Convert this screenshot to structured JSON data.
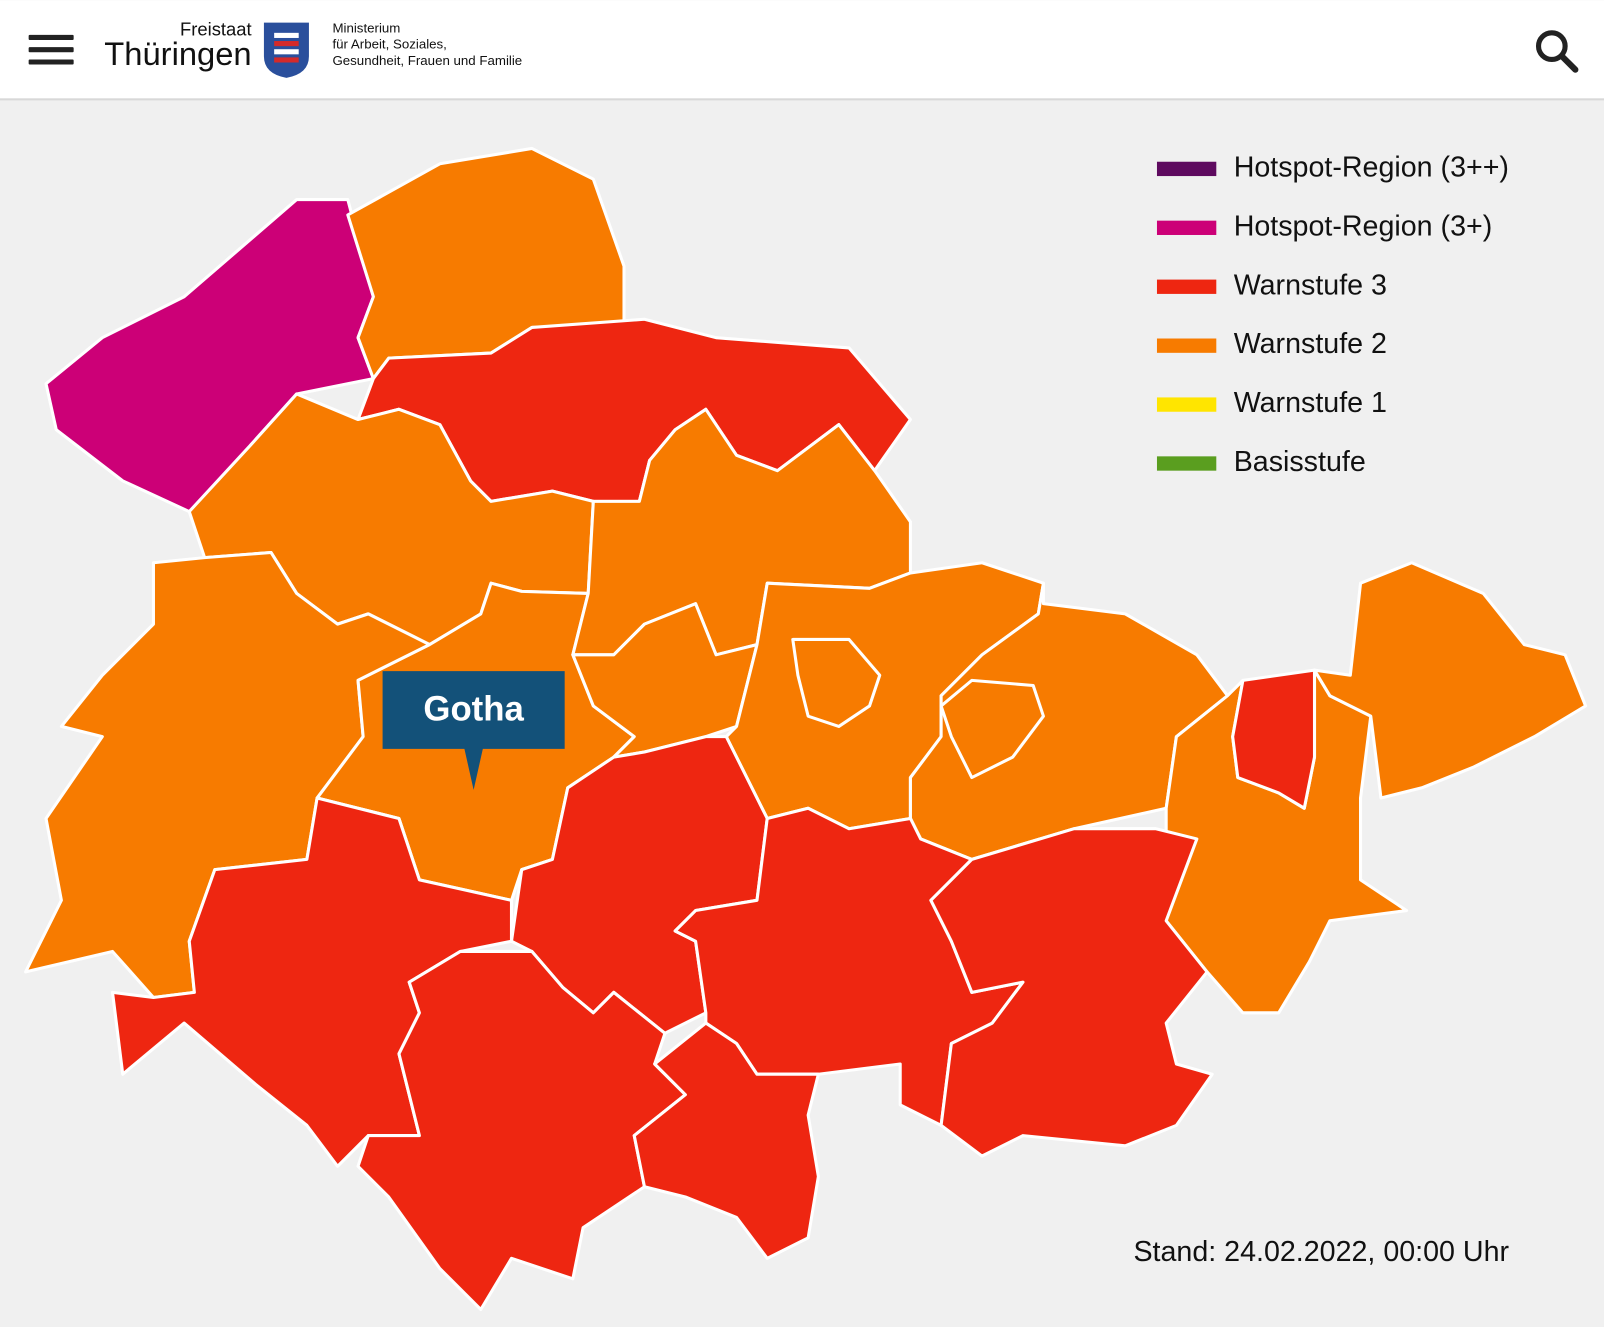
{
  "header": {
    "brand": {
      "small": "Freistaat",
      "large": "Thüringen"
    },
    "ministry": [
      "Ministerium",
      "für Arbeit, Soziales,",
      "Gesundheit, Frauen und Familie"
    ]
  },
  "map": {
    "legend": [
      {
        "label": "Hotspot-Region (3++)",
        "color": "#5e0a5f"
      },
      {
        "label": "Hotspot-Region (3+)",
        "color": "#cc0077"
      },
      {
        "label": "Warnstufe 3",
        "color": "#ee2611"
      },
      {
        "label": "Warnstufe 2",
        "color": "#f77b00"
      },
      {
        "label": "Warnstufe 1",
        "color": "#ffe500"
      },
      {
        "label": "Basisstufe",
        "color": "#5a9e1f"
      }
    ],
    "tooltip": "Gotha",
    "stand": "Stand: 24.02.2022, 00:00 Uhr"
  }
}
